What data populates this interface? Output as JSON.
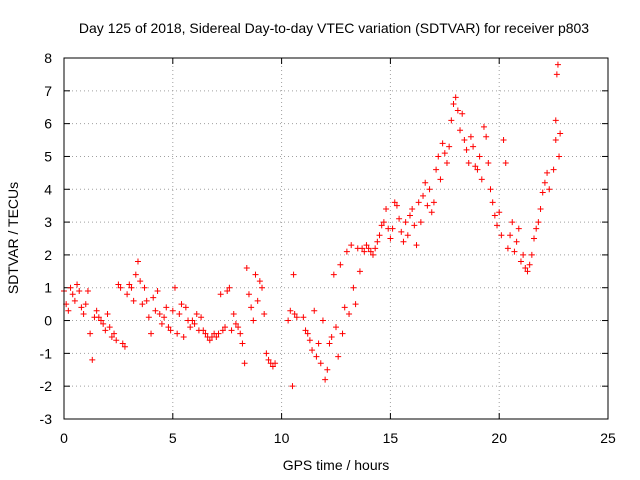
{
  "chart_data": {
    "type": "scatter",
    "title": "Day 125 of 2018, Sidereal Day-to-day VTEC variation (SDTVAR) for receiver p803",
    "xlabel": "GPS time / hours",
    "ylabel": "SDTVAR / TECUs",
    "xlim": [
      0,
      25
    ],
    "ylim": [
      -3,
      8
    ],
    "xticks": [
      0,
      5,
      10,
      15,
      20,
      25
    ],
    "yticks": [
      -3,
      -2,
      -1,
      0,
      1,
      2,
      3,
      4,
      5,
      6,
      7,
      8
    ],
    "grid": true,
    "marker": "plus",
    "color": "#ff0000",
    "series": [
      {
        "points": [
          [
            0.0,
            0.9
          ],
          [
            0.1,
            0.5
          ],
          [
            0.2,
            0.3
          ],
          [
            0.3,
            1.0
          ],
          [
            0.4,
            0.8
          ],
          [
            0.5,
            0.6
          ],
          [
            0.6,
            1.1
          ],
          [
            0.7,
            0.9
          ],
          [
            0.8,
            0.4
          ],
          [
            0.9,
            0.2
          ],
          [
            1.0,
            0.5
          ],
          [
            1.1,
            0.9
          ],
          [
            1.2,
            -0.4
          ],
          [
            1.3,
            -1.2
          ],
          [
            1.4,
            0.1
          ],
          [
            1.5,
            0.3
          ],
          [
            1.6,
            0.1
          ],
          [
            1.7,
            0.0
          ],
          [
            1.8,
            -0.1
          ],
          [
            1.9,
            -0.3
          ],
          [
            2.0,
            0.2
          ],
          [
            2.1,
            -0.2
          ],
          [
            2.2,
            -0.5
          ],
          [
            2.3,
            -0.4
          ],
          [
            2.4,
            -0.6
          ],
          [
            2.5,
            1.1
          ],
          [
            2.6,
            1.0
          ],
          [
            2.7,
            -0.7
          ],
          [
            2.8,
            -0.8
          ],
          [
            2.9,
            0.8
          ],
          [
            3.0,
            1.1
          ],
          [
            3.1,
            1.0
          ],
          [
            3.2,
            0.6
          ],
          [
            3.3,
            1.4
          ],
          [
            3.4,
            1.8
          ],
          [
            3.5,
            1.2
          ],
          [
            3.6,
            0.5
          ],
          [
            3.7,
            1.0
          ],
          [
            3.8,
            0.6
          ],
          [
            3.9,
            0.1
          ],
          [
            4.0,
            -0.4
          ],
          [
            4.1,
            0.7
          ],
          [
            4.2,
            0.3
          ],
          [
            4.3,
            0.9
          ],
          [
            4.4,
            0.2
          ],
          [
            4.5,
            -0.1
          ],
          [
            4.6,
            0.1
          ],
          [
            4.7,
            0.4
          ],
          [
            4.8,
            -0.2
          ],
          [
            4.9,
            -0.3
          ],
          [
            5.0,
            0.3
          ],
          [
            5.1,
            1.0
          ],
          [
            5.2,
            -0.4
          ],
          [
            5.3,
            0.2
          ],
          [
            5.4,
            0.5
          ],
          [
            5.5,
            -0.5
          ],
          [
            5.6,
            0.4
          ],
          [
            5.7,
            0.0
          ],
          [
            5.8,
            -0.2
          ],
          [
            5.9,
            0.0
          ],
          [
            6.0,
            -0.1
          ],
          [
            6.1,
            0.2
          ],
          [
            6.2,
            -0.3
          ],
          [
            6.3,
            0.1
          ],
          [
            6.4,
            -0.3
          ],
          [
            6.5,
            -0.4
          ],
          [
            6.6,
            -0.5
          ],
          [
            6.7,
            -0.6
          ],
          [
            6.8,
            -0.5
          ],
          [
            6.9,
            -0.4
          ],
          [
            7.0,
            -0.5
          ],
          [
            7.1,
            -0.4
          ],
          [
            7.2,
            0.8
          ],
          [
            7.3,
            -0.3
          ],
          [
            7.4,
            -0.2
          ],
          [
            7.5,
            0.9
          ],
          [
            7.6,
            1.0
          ],
          [
            7.7,
            -0.3
          ],
          [
            7.8,
            0.2
          ],
          [
            7.9,
            -0.1
          ],
          [
            8.0,
            -0.2
          ],
          [
            8.1,
            -0.4
          ],
          [
            8.2,
            -0.7
          ],
          [
            8.3,
            -1.3
          ],
          [
            8.4,
            1.6
          ],
          [
            8.5,
            0.8
          ],
          [
            8.6,
            0.4
          ],
          [
            8.7,
            0.0
          ],
          [
            8.8,
            1.4
          ],
          [
            8.9,
            0.6
          ],
          [
            9.0,
            1.2
          ],
          [
            9.1,
            1.0
          ],
          [
            9.2,
            0.2
          ],
          [
            9.3,
            -1.0
          ],
          [
            9.4,
            -1.2
          ],
          [
            9.5,
            -1.3
          ],
          [
            9.6,
            -1.4
          ],
          [
            9.7,
            -1.3
          ],
          [
            10.3,
            0.0
          ],
          [
            10.4,
            0.3
          ],
          [
            10.5,
            -2.0
          ],
          [
            10.55,
            1.4
          ],
          [
            10.6,
            0.2
          ],
          [
            10.7,
            0.1
          ],
          [
            11.0,
            0.1
          ],
          [
            11.1,
            -0.3
          ],
          [
            11.2,
            -0.4
          ],
          [
            11.3,
            -0.6
          ],
          [
            11.4,
            -0.9
          ],
          [
            11.5,
            0.3
          ],
          [
            11.6,
            -1.1
          ],
          [
            11.7,
            -0.7
          ],
          [
            11.8,
            -1.3
          ],
          [
            11.9,
            0.0
          ],
          [
            12.0,
            -1.8
          ],
          [
            12.1,
            -1.5
          ],
          [
            12.2,
            -0.7
          ],
          [
            12.3,
            -0.5
          ],
          [
            12.4,
            1.4
          ],
          [
            12.5,
            -0.2
          ],
          [
            12.6,
            -1.1
          ],
          [
            12.7,
            1.7
          ],
          [
            12.8,
            -0.4
          ],
          [
            12.9,
            0.4
          ],
          [
            13.0,
            2.1
          ],
          [
            13.1,
            0.2
          ],
          [
            13.2,
            2.3
          ],
          [
            13.3,
            1.0
          ],
          [
            13.4,
            0.5
          ],
          [
            13.5,
            2.2
          ],
          [
            13.6,
            1.5
          ],
          [
            13.7,
            2.2
          ],
          [
            13.8,
            2.1
          ],
          [
            13.9,
            2.3
          ],
          [
            14.0,
            2.2
          ],
          [
            14.1,
            2.1
          ],
          [
            14.2,
            2.0
          ],
          [
            14.3,
            2.2
          ],
          [
            14.4,
            2.4
          ],
          [
            14.5,
            2.6
          ],
          [
            14.6,
            2.9
          ],
          [
            14.7,
            3.0
          ],
          [
            14.8,
            3.4
          ],
          [
            14.9,
            2.8
          ],
          [
            15.0,
            2.5
          ],
          [
            15.1,
            2.8
          ],
          [
            15.2,
            3.6
          ],
          [
            15.3,
            3.5
          ],
          [
            15.4,
            3.1
          ],
          [
            15.5,
            2.7
          ],
          [
            15.6,
            2.4
          ],
          [
            15.7,
            3.0
          ],
          [
            15.8,
            2.6
          ],
          [
            15.9,
            3.2
          ],
          [
            16.0,
            3.4
          ],
          [
            16.1,
            2.9
          ],
          [
            16.2,
            2.3
          ],
          [
            16.3,
            3.6
          ],
          [
            16.4,
            3.0
          ],
          [
            16.5,
            3.8
          ],
          [
            16.6,
            4.2
          ],
          [
            16.7,
            3.5
          ],
          [
            16.8,
            4.0
          ],
          [
            16.9,
            3.3
          ],
          [
            17.0,
            3.6
          ],
          [
            17.1,
            4.6
          ],
          [
            17.2,
            5.0
          ],
          [
            17.3,
            4.3
          ],
          [
            17.4,
            5.4
          ],
          [
            17.5,
            5.1
          ],
          [
            17.6,
            4.8
          ],
          [
            17.7,
            5.3
          ],
          [
            17.8,
            6.1
          ],
          [
            17.9,
            6.6
          ],
          [
            18.0,
            6.8
          ],
          [
            18.1,
            6.4
          ],
          [
            18.2,
            5.8
          ],
          [
            18.3,
            6.3
          ],
          [
            18.4,
            5.5
          ],
          [
            18.5,
            5.2
          ],
          [
            18.6,
            4.8
          ],
          [
            18.7,
            5.6
          ],
          [
            18.8,
            5.3
          ],
          [
            18.9,
            4.7
          ],
          [
            19.0,
            4.6
          ],
          [
            19.1,
            5.0
          ],
          [
            19.2,
            4.3
          ],
          [
            19.3,
            5.9
          ],
          [
            19.4,
            5.6
          ],
          [
            19.5,
            4.8
          ],
          [
            19.6,
            4.0
          ],
          [
            19.7,
            3.6
          ],
          [
            19.8,
            3.2
          ],
          [
            19.9,
            2.9
          ],
          [
            20.0,
            3.3
          ],
          [
            20.1,
            2.6
          ],
          [
            20.2,
            5.5
          ],
          [
            20.3,
            4.8
          ],
          [
            20.4,
            2.2
          ],
          [
            20.5,
            2.6
          ],
          [
            20.6,
            3.0
          ],
          [
            20.7,
            2.1
          ],
          [
            20.8,
            2.4
          ],
          [
            20.9,
            2.8
          ],
          [
            21.0,
            1.8
          ],
          [
            21.1,
            2.0
          ],
          [
            21.2,
            1.6
          ],
          [
            21.3,
            1.5
          ],
          [
            21.4,
            1.7
          ],
          [
            21.5,
            2.0
          ],
          [
            21.6,
            2.5
          ],
          [
            21.7,
            2.8
          ],
          [
            21.8,
            3.0
          ],
          [
            21.9,
            3.4
          ],
          [
            22.0,
            3.9
          ],
          [
            22.1,
            4.2
          ],
          [
            22.2,
            4.5
          ],
          [
            22.3,
            4.0
          ],
          [
            22.5,
            4.6
          ],
          [
            22.6,
            5.5
          ],
          [
            22.6,
            6.1
          ],
          [
            22.65,
            7.5
          ],
          [
            22.7,
            7.8
          ],
          [
            22.75,
            5.0
          ],
          [
            22.8,
            5.7
          ]
        ]
      }
    ]
  }
}
